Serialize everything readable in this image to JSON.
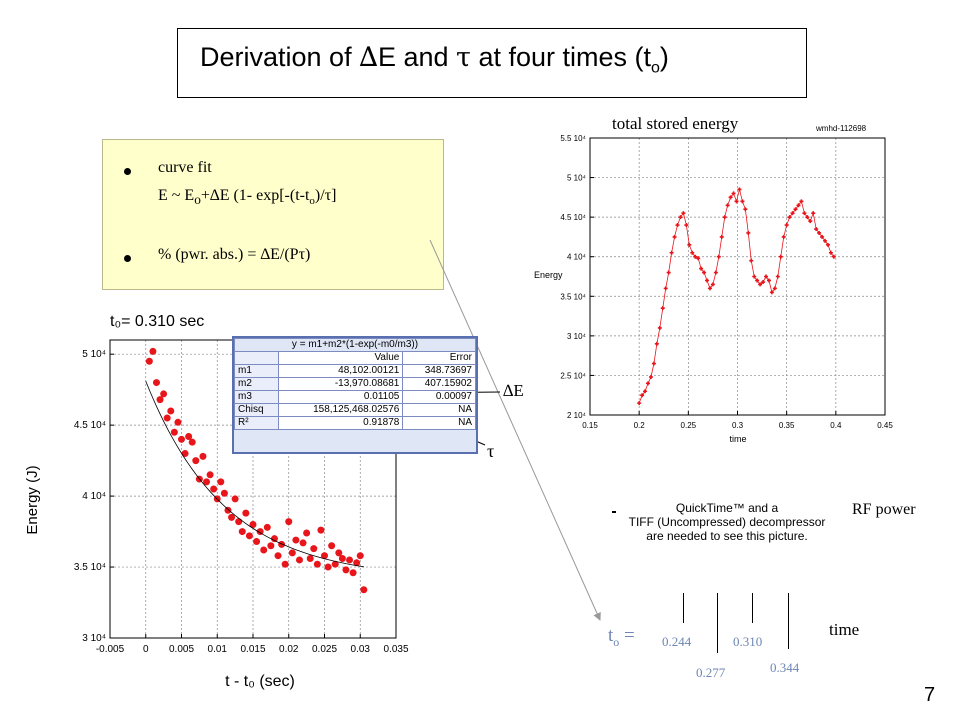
{
  "title": {
    "prefix": "Derivation of ",
    "delta": "∆",
    "mid": "E and ",
    "tau": "τ",
    "suffix": " at four times (t",
    "sub": "o",
    "close": ")"
  },
  "fit_box": {
    "item1": "curve fit",
    "formula_a": "E ~ E",
    "formula_sub": "o",
    "formula_b": "+∆E (1- exp[-(t-t",
    "formula_sub2": "o",
    "formula_c": ")/τ]",
    "item2": "% (pwr. abs.) = ∆E/(Pτ)"
  },
  "labels": {
    "delta_e": "∆E",
    "tau": "τ",
    "total_stored_energy": "total stored energy",
    "shot_id": "wmhd-112698",
    "rf_power": "RF power",
    "time": "time",
    "page_number": "7",
    "t0_label": "t",
    "t0_sub": "o",
    "t0_eq": " =",
    "t_values": [
      "0.244",
      "0.277",
      "0.310",
      "0.344"
    ]
  },
  "quicktime": [
    "QuickTime™ and a",
    "TIFF (Uncompressed) decompressor",
    "are needed to see this picture."
  ],
  "fit_table": {
    "formula": "y = m1+m2*(1-exp(-m0/m3))",
    "headers": [
      "",
      "Value",
      "Error"
    ],
    "rows": [
      [
        "m1",
        "48,102.00121",
        "348.73697"
      ],
      [
        "m2",
        "-13,970.08681",
        "407.15902"
      ],
      [
        "m3",
        "0.01105",
        "0.00097"
      ],
      [
        "Chisq",
        "158,125,468.02576",
        "NA"
      ],
      [
        "R²",
        "0.91878",
        "NA"
      ]
    ]
  },
  "colors": {
    "data": "#e8151b",
    "box_fill": "#ffffcc",
    "table_border": "#5a6fb0",
    "t_values": "#6f86b5"
  },
  "chart_data": [
    {
      "type": "scatter",
      "title": "total stored energy",
      "xlabel": "time",
      "ylabel": "Energy",
      "xlim": [
        0.15,
        0.45
      ],
      "ylim": [
        20000,
        55000
      ],
      "xticks": [
        "0.15",
        "0.2",
        "0.25",
        "0.3",
        "0.35",
        "0.4",
        "0.45"
      ],
      "yticks": [
        "2 10⁴",
        "2.5 10⁴",
        "3 10⁴",
        "3.5 10⁴",
        "4 10⁴",
        "4.5 10⁴",
        "5 10⁴",
        "5.5 10⁴"
      ],
      "grid": true,
      "series": [
        {
          "x": [
            0.2,
            0.203,
            0.206,
            0.209,
            0.212,
            0.215,
            0.218,
            0.221,
            0.224,
            0.227,
            0.23,
            0.233,
            0.236,
            0.239,
            0.242,
            0.245,
            0.248,
            0.251,
            0.254,
            0.257,
            0.26,
            0.263,
            0.266,
            0.269,
            0.272,
            0.275,
            0.278,
            0.281,
            0.284,
            0.287,
            0.29,
            0.293,
            0.296,
            0.299,
            0.302,
            0.305,
            0.308,
            0.311,
            0.314,
            0.317,
            0.32,
            0.323,
            0.326,
            0.329,
            0.332,
            0.335,
            0.338,
            0.341,
            0.344,
            0.347,
            0.35,
            0.353,
            0.356,
            0.359,
            0.362,
            0.365,
            0.368,
            0.371,
            0.374,
            0.377,
            0.38,
            0.383,
            0.386,
            0.389,
            0.392,
            0.395,
            0.398
          ],
          "y": [
            21500,
            22500,
            23000,
            24000,
            24800,
            26500,
            29000,
            31000,
            33500,
            36000,
            38000,
            40500,
            42500,
            44000,
            45000,
            45500,
            44000,
            41500,
            40500,
            40000,
            39800,
            38500,
            38000,
            37000,
            36000,
            36500,
            38000,
            40000,
            42500,
            45000,
            46500,
            47500,
            48000,
            47000,
            48500,
            47000,
            46000,
            43000,
            39500,
            37500,
            37000,
            36500,
            36800,
            37500,
            37000,
            35500,
            36000,
            37500,
            40000,
            42500,
            44000,
            45000,
            45500,
            46000,
            46500,
            47000,
            45500,
            45000,
            44500,
            45500,
            43500,
            43000,
            42500,
            42000,
            41500,
            40500,
            40000
          ]
        }
      ]
    },
    {
      "type": "scatter",
      "title": "t₀= 0.310 sec",
      "xlabel": "t - t₀ (sec)",
      "ylabel": "Energy (J)",
      "xlim": [
        -0.005,
        0.035
      ],
      "ylim": [
        30000,
        51000
      ],
      "xticks": [
        "-0.005",
        "0",
        "0.005",
        "0.01",
        "0.015",
        "0.02",
        "0.025",
        "0.03",
        "0.035"
      ],
      "yticks": [
        "3 10⁴",
        "3.5 10⁴",
        "4 10⁴",
        "4.5 10⁴",
        "5 10⁴"
      ],
      "grid": true,
      "series": [
        {
          "x": [
            0.0005,
            0.001,
            0.0015,
            0.002,
            0.0025,
            0.003,
            0.0035,
            0.004,
            0.0045,
            0.005,
            0.0055,
            0.006,
            0.0065,
            0.007,
            0.0075,
            0.008,
            0.0085,
            0.009,
            0.0095,
            0.01,
            0.0105,
            0.011,
            0.0115,
            0.012,
            0.0125,
            0.013,
            0.0135,
            0.014,
            0.0145,
            0.015,
            0.0155,
            0.016,
            0.0165,
            0.017,
            0.0175,
            0.018,
            0.0185,
            0.019,
            0.0195,
            0.02,
            0.0205,
            0.021,
            0.0215,
            0.022,
            0.0225,
            0.023,
            0.0235,
            0.024,
            0.0245,
            0.025,
            0.0255,
            0.026,
            0.0265,
            0.027,
            0.0275,
            0.028,
            0.0285,
            0.029,
            0.0295,
            0.03,
            0.0305
          ],
          "y": [
            49500,
            50200,
            48000,
            46800,
            47200,
            45500,
            46000,
            44500,
            45200,
            44000,
            43000,
            44200,
            43800,
            42500,
            41200,
            42800,
            41000,
            41500,
            40500,
            39800,
            41000,
            40200,
            39000,
            38500,
            39800,
            38200,
            37500,
            38800,
            37200,
            38000,
            36800,
            37500,
            36200,
            37800,
            36500,
            37000,
            35800,
            36600,
            35200,
            38200,
            36000,
            36900,
            35500,
            36700,
            37400,
            35600,
            36300,
            35200,
            37600,
            35800,
            35000,
            36500,
            35200,
            36000,
            35600,
            34800,
            35500,
            34600,
            35300,
            35800,
            33400
          ]
        }
      ],
      "fit": {
        "m1": 48102.00121,
        "m2": -13970.08681,
        "m3": 0.01105
      }
    }
  ]
}
